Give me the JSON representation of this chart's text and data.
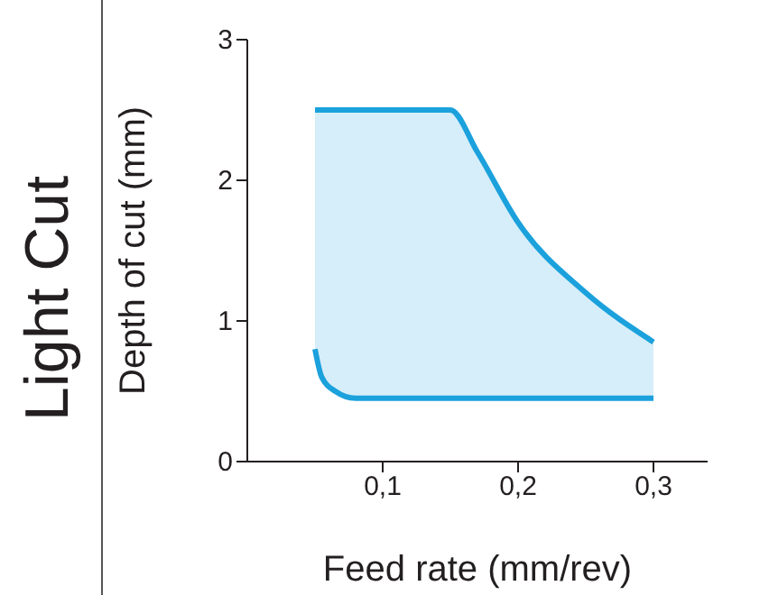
{
  "chart_data": {
    "type": "area",
    "title": "Light Cut",
    "xlabel": "Feed rate (mm/rev)",
    "ylabel": "Depth of cut (mm)",
    "xlim": [
      0,
      0.34
    ],
    "xticks": [
      {
        "value": 0.1,
        "label": "0,1"
      },
      {
        "value": 0.2,
        "label": "0,2"
      },
      {
        "value": 0.3,
        "label": "0,3"
      }
    ],
    "ylim": [
      0,
      3
    ],
    "yticks": [
      0,
      1,
      2,
      3
    ],
    "grid": false,
    "legend": false,
    "series": [
      {
        "color": "#1ba1dc",
        "x": [
          0.05,
          0.055,
          0.065,
          0.08,
          0.15,
          0.17,
          0.2,
          0.25,
          0.3
        ],
        "values": [
          2.5,
          2.5,
          2.5,
          2.5,
          2.5,
          2.2,
          1.7,
          1.2,
          0.85
        ]
      },
      {
        "type": "line",
        "color": "#1ba1dc",
        "x": [
          0.05,
          0.055,
          0.065,
          0.08,
          0.15,
          0.17,
          0.2,
          0.25,
          0.3
        ],
        "values": [
          0.8,
          0.6,
          0.5,
          0.45,
          0.45,
          0.45,
          0.45,
          0.45,
          0.45
        ]
      }
    ]
  }
}
